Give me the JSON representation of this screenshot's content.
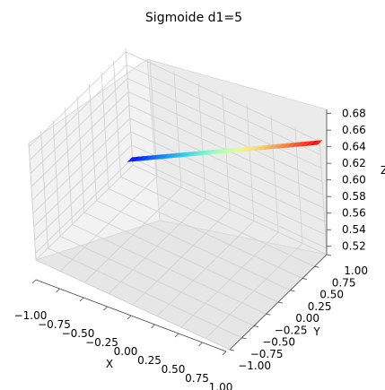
{
  "chart_data": {
    "type": "surface3d",
    "title": "Sigmoide d1=5",
    "xlabel": "X",
    "ylabel": "Y",
    "zlabel": "Z",
    "xlim": [
      -1.0,
      1.0
    ],
    "ylim": [
      -1.0,
      1.0
    ],
    "zlim": [
      0.51,
      0.685
    ],
    "x_ticks": [
      "−1.00",
      "−0.75",
      "−0.50",
      "−0.25",
      "0.00",
      "0.25",
      "0.50",
      "0.75",
      "1.00"
    ],
    "y_ticks": [
      "−1.00",
      "−0.75",
      "−0.50",
      "−0.25",
      "0.00",
      "0.25",
      "0.50",
      "0.75",
      "1.00"
    ],
    "z_ticks": [
      "0.52",
      "0.54",
      "0.56",
      "0.58",
      "0.60",
      "0.62",
      "0.64",
      "0.66",
      "0.68"
    ],
    "surface": {
      "x_range": [
        -1.0,
        1.0
      ],
      "y_range": [
        0.95,
        1.0
      ],
      "z_at_x_min": 0.52,
      "z_at_x_max": 0.68
    },
    "colormap": "rainbow",
    "grid": true
  }
}
